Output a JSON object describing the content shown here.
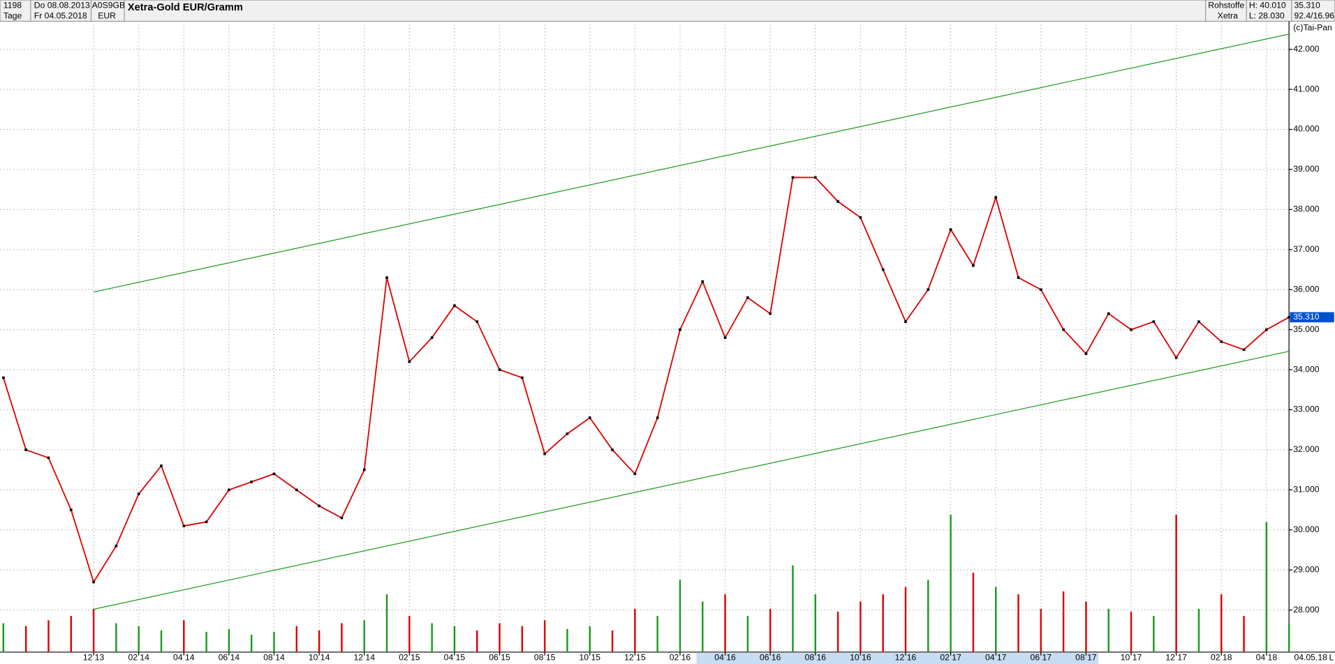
{
  "header": {
    "count": "1198",
    "start_date": "Do 08.08.2013",
    "isin": "A0S9GB",
    "title": "Xetra-Gold EUR/Gramm",
    "period": "Tage",
    "end_date": "Fr 04.05.2018",
    "currency": "EUR",
    "group": "Rohstoffe",
    "high": "H: 40.010",
    "last": "35.310",
    "exchange": "Xetra",
    "low": "L: 28.030",
    "ratio": "92.4/16.96",
    "copyright": "(c)Tai-Pan",
    "end_label": "04.05.18",
    "scale_mode": "L"
  },
  "chart_data": {
    "type": "line",
    "color": "#e00000",
    "grid": true,
    "x": [
      "2013-08",
      "2013-09",
      "2013-10",
      "2013-11",
      "2013-12",
      "2014-01",
      "2014-02",
      "2014-03",
      "2014-04",
      "2014-05",
      "2014-06",
      "2014-07",
      "2014-08",
      "2014-09",
      "2014-10",
      "2014-11",
      "2014-12",
      "2015-01",
      "2015-02",
      "2015-03",
      "2015-04",
      "2015-05",
      "2015-06",
      "2015-07",
      "2015-08",
      "2015-09",
      "2015-10",
      "2015-11",
      "2015-12",
      "2016-01",
      "2016-02",
      "2016-03",
      "2016-04",
      "2016-05",
      "2016-06",
      "2016-07",
      "2016-08",
      "2016-09",
      "2016-10",
      "2016-11",
      "2016-12",
      "2017-01",
      "2017-02",
      "2017-03",
      "2017-04",
      "2017-05",
      "2017-06",
      "2017-07",
      "2017-08",
      "2017-09",
      "2017-10",
      "2017-11",
      "2017-12",
      "2018-01",
      "2018-02",
      "2018-03",
      "2018-04",
      "2018-05"
    ],
    "values": [
      33.8,
      32.0,
      31.8,
      30.5,
      28.7,
      29.6,
      30.9,
      31.6,
      30.1,
      30.2,
      31.0,
      31.2,
      31.4,
      31.0,
      30.6,
      30.3,
      31.5,
      36.3,
      34.2,
      34.8,
      35.6,
      35.2,
      34.0,
      33.8,
      31.9,
      32.4,
      32.8,
      32.0,
      31.4,
      32.8,
      35.0,
      36.2,
      34.8,
      35.8,
      35.4,
      38.8,
      38.8,
      38.2,
      37.8,
      36.5,
      35.2,
      36.0,
      37.5,
      36.6,
      38.3,
      36.3,
      36.0,
      35.0,
      34.4,
      35.4,
      35.0,
      35.2,
      34.3,
      35.2,
      34.7,
      34.5,
      35.0,
      35.31
    ],
    "volume": [
      20,
      18,
      22,
      25,
      30,
      20,
      18,
      15,
      22,
      14,
      16,
      12,
      14,
      18,
      15,
      20,
      22,
      40,
      25,
      20,
      18,
      15,
      20,
      18,
      22,
      16,
      18,
      15,
      30,
      25,
      50,
      35,
      40,
      25,
      30,
      60,
      40,
      28,
      35,
      40,
      45,
      50,
      95,
      55,
      45,
      40,
      30,
      42,
      35,
      30,
      28,
      25,
      95,
      30,
      40,
      25,
      90,
      20
    ],
    "xlim": [
      "2013-08",
      "2018-05"
    ],
    "xticks": [
      {
        "value": "2013-12",
        "label": "12 13"
      },
      {
        "value": "2014-02",
        "label": "02 14"
      },
      {
        "value": "2014-04",
        "label": "04 14"
      },
      {
        "value": "2014-06",
        "label": "06 14"
      },
      {
        "value": "2014-08",
        "label": "08 14"
      },
      {
        "value": "2014-10",
        "label": "10 14"
      },
      {
        "value": "2014-12",
        "label": "12 14"
      },
      {
        "value": "2015-02",
        "label": "02 15"
      },
      {
        "value": "2015-04",
        "label": "04 15"
      },
      {
        "value": "2015-06",
        "label": "06 15"
      },
      {
        "value": "2015-08",
        "label": "08 15"
      },
      {
        "value": "2015-10",
        "label": "10 15"
      },
      {
        "value": "2015-12",
        "label": "12 15"
      },
      {
        "value": "2016-02",
        "label": "02 16"
      },
      {
        "value": "2016-04",
        "label": "04 16"
      },
      {
        "value": "2016-06",
        "label": "06 16"
      },
      {
        "value": "2016-08",
        "label": "08 16"
      },
      {
        "value": "2016-10",
        "label": "10 16"
      },
      {
        "value": "2016-12",
        "label": "12 16"
      },
      {
        "value": "2017-02",
        "label": "02 17"
      },
      {
        "value": "2017-04",
        "label": "04 17"
      },
      {
        "value": "2017-06",
        "label": "06 17"
      },
      {
        "value": "2017-08",
        "label": "08 17"
      },
      {
        "value": "2017-10",
        "label": "10 17"
      },
      {
        "value": "2017-12",
        "label": "12 17"
      },
      {
        "value": "2018-02",
        "label": "02 18"
      },
      {
        "value": "2018-04",
        "label": "04 18"
      }
    ],
    "ylim": [
      26.95,
      42.7
    ],
    "yticks": [
      {
        "value": 28,
        "label": "28.000"
      },
      {
        "value": 29,
        "label": "29.000"
      },
      {
        "value": 30,
        "label": "30.000"
      },
      {
        "value": 31,
        "label": "31.000"
      },
      {
        "value": 32,
        "label": "32.000"
      },
      {
        "value": 33,
        "label": "33.000"
      },
      {
        "value": 34,
        "label": "34.000"
      },
      {
        "value": 35,
        "label": "35.000"
      },
      {
        "value": 36,
        "label": "36.000"
      },
      {
        "value": 37,
        "label": "37.000"
      },
      {
        "value": 38,
        "label": "38.000"
      },
      {
        "value": 39,
        "label": "39.000"
      },
      {
        "value": 40,
        "label": "40.000"
      },
      {
        "value": 41,
        "label": "41.000"
      },
      {
        "value": 42,
        "label": "42.000"
      }
    ],
    "last_value": {
      "value": 35.31,
      "label": "35.310"
    },
    "trendlines": [
      {
        "color": "#1a9a1a",
        "x": [
          "2013-12",
          "2018-05"
        ],
        "values": [
          35.94,
          42.38
        ]
      },
      {
        "color": "#1a9a1a",
        "x": [
          "2013-12",
          "2018-05"
        ],
        "values": [
          28.02,
          34.46
        ]
      }
    ]
  }
}
